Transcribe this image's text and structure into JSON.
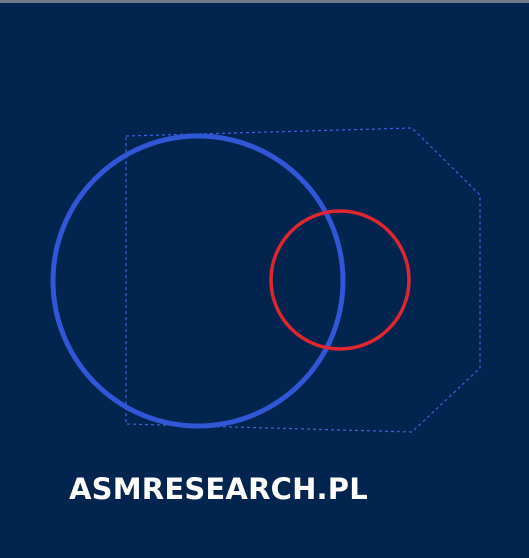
{
  "brand": {
    "text": "ASMRESEARCH.PL"
  }
}
